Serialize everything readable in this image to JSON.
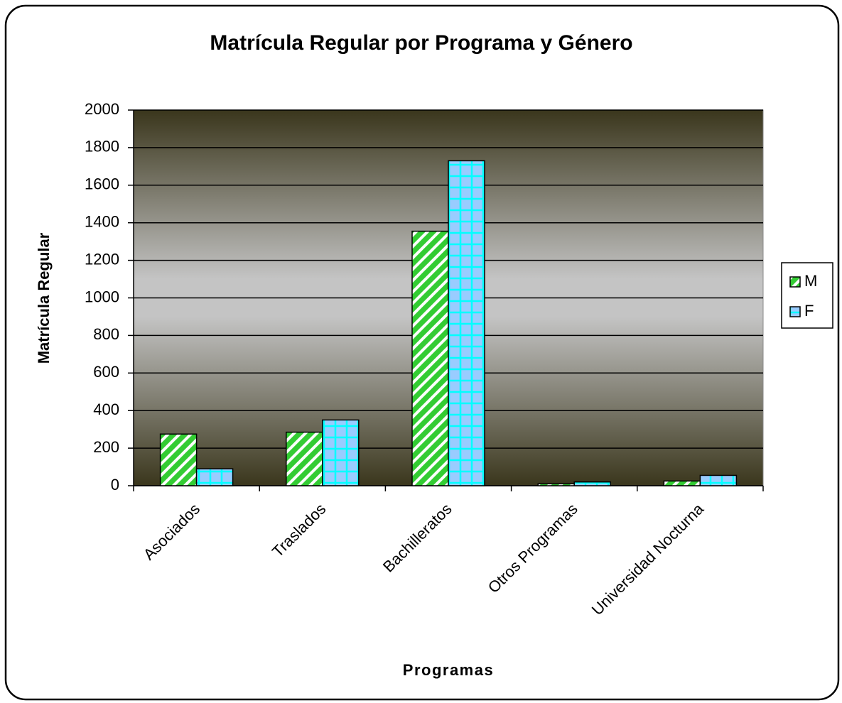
{
  "chart_data": {
    "type": "bar",
    "title": "Matrícula Regular por Programa y Género",
    "x_label": "Programas",
    "y_label": "Matrícula Regular",
    "categories": [
      "Asociados",
      "Traslados",
      "Bachilleratos",
      "Otros Programas",
      "Universidad Nocturna"
    ],
    "series": [
      {
        "name": "M",
        "color": "#33cc33",
        "values": [
          275,
          285,
          1355,
          10,
          25
        ]
      },
      {
        "name": "F",
        "color": "#99ccff",
        "values": [
          90,
          350,
          1730,
          20,
          55
        ]
      }
    ],
    "ylim": [
      0,
      2000
    ],
    "yticks": [
      0,
      200,
      400,
      600,
      800,
      1000,
      1200,
      1400,
      1600,
      1800,
      2000
    ],
    "grid": true,
    "legend": "right"
  }
}
